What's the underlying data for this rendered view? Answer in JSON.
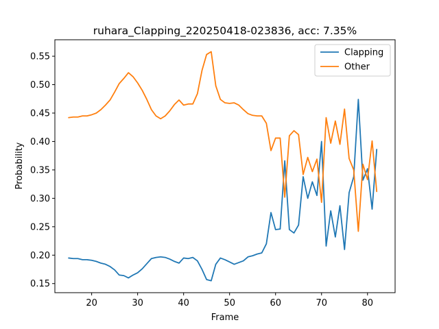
{
  "chart_data": {
    "type": "line",
    "title": "ruhara_Clapping_220250418-023836,  acc: 7.35%",
    "xlabel": "Frame",
    "ylabel": "Probability",
    "xlim": [
      12,
      86
    ],
    "ylim": [
      0.134,
      0.579
    ],
    "xticks": [
      20,
      30,
      40,
      50,
      60,
      70,
      80
    ],
    "yticks": [
      0.15,
      0.2,
      0.25,
      0.3,
      0.35,
      0.4,
      0.45,
      0.5,
      0.55
    ],
    "ytick_labels": [
      "0.15",
      "0.20",
      "0.25",
      "0.30",
      "0.35",
      "0.40",
      "0.45",
      "0.50",
      "0.55"
    ],
    "grid": false,
    "legend_position": "top-right",
    "x": [
      15,
      16,
      17,
      18,
      19,
      20,
      21,
      22,
      23,
      24,
      25,
      26,
      27,
      28,
      29,
      30,
      31,
      32,
      33,
      34,
      35,
      36,
      37,
      38,
      39,
      40,
      41,
      42,
      43,
      44,
      45,
      46,
      47,
      48,
      49,
      50,
      51,
      52,
      53,
      54,
      55,
      56,
      57,
      58,
      59,
      60,
      61,
      62,
      63,
      64,
      65,
      66,
      67,
      68,
      69,
      70,
      71,
      72,
      73,
      74,
      75,
      76,
      77,
      78,
      79,
      80,
      81,
      82
    ],
    "series": [
      {
        "name": "Clapping",
        "color": "#1f77b4",
        "values": [
          0.195,
          0.194,
          0.194,
          0.192,
          0.192,
          0.191,
          0.189,
          0.186,
          0.184,
          0.18,
          0.174,
          0.165,
          0.164,
          0.16,
          0.165,
          0.169,
          0.176,
          0.185,
          0.194,
          0.196,
          0.197,
          0.196,
          0.193,
          0.189,
          0.186,
          0.195,
          0.194,
          0.196,
          0.19,
          0.175,
          0.157,
          0.155,
          0.184,
          0.195,
          0.192,
          0.188,
          0.184,
          0.187,
          0.19,
          0.197,
          0.199,
          0.202,
          0.204,
          0.22,
          0.275,
          0.245,
          0.246,
          0.366,
          0.245,
          0.239,
          0.253,
          0.338,
          0.3,
          0.329,
          0.305,
          0.4,
          0.216,
          0.278,
          0.232,
          0.287,
          0.21,
          0.31,
          0.338,
          0.474,
          0.332,
          0.352,
          0.281,
          0.386
        ]
      },
      {
        "name": "Other",
        "color": "#ff7f0e",
        "values": [
          0.442,
          0.443,
          0.443,
          0.445,
          0.445,
          0.447,
          0.45,
          0.456,
          0.464,
          0.473,
          0.487,
          0.502,
          0.511,
          0.521,
          0.514,
          0.503,
          0.49,
          0.474,
          0.456,
          0.445,
          0.44,
          0.445,
          0.454,
          0.465,
          0.473,
          0.464,
          0.466,
          0.466,
          0.484,
          0.525,
          0.553,
          0.558,
          0.498,
          0.474,
          0.468,
          0.467,
          0.468,
          0.464,
          0.456,
          0.449,
          0.446,
          0.445,
          0.445,
          0.432,
          0.384,
          0.406,
          0.406,
          0.302,
          0.41,
          0.419,
          0.412,
          0.342,
          0.372,
          0.347,
          0.369,
          0.293,
          0.442,
          0.397,
          0.436,
          0.395,
          0.457,
          0.37,
          0.35,
          0.242,
          0.36,
          0.333,
          0.401,
          0.312
        ]
      }
    ]
  }
}
